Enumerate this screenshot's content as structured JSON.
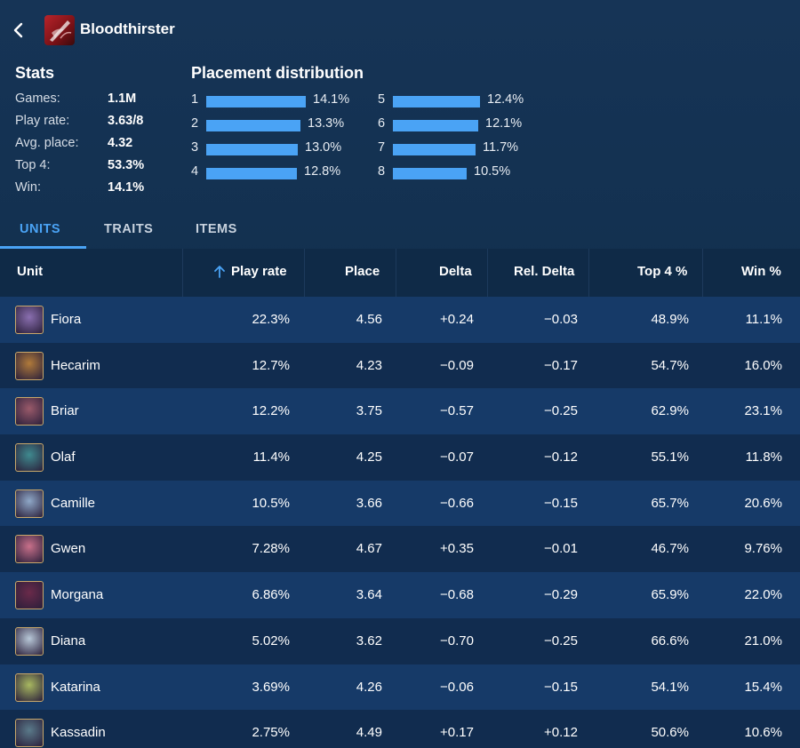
{
  "header": {
    "title": "Bloodthirster",
    "back_icon": "chevron-left-icon",
    "item_icon": "bloodthirster-item-icon"
  },
  "stats": {
    "title": "Stats",
    "rows": [
      {
        "label": "Games:",
        "value": "1.1M"
      },
      {
        "label": "Play rate:",
        "value": "3.63/8"
      },
      {
        "label": "Avg. place:",
        "value": "4.32"
      },
      {
        "label": "Top 4:",
        "value": "53.3%"
      },
      {
        "label": "Win:",
        "value": "14.1%"
      }
    ]
  },
  "distribution": {
    "title": "Placement distribution",
    "bar_color": "#4aa3f5",
    "rows": [
      {
        "place": "1",
        "pct": "14.1%",
        "value": 14.1
      },
      {
        "place": "2",
        "pct": "13.3%",
        "value": 13.3
      },
      {
        "place": "3",
        "pct": "13.0%",
        "value": 13.0
      },
      {
        "place": "4",
        "pct": "12.8%",
        "value": 12.8
      },
      {
        "place": "5",
        "pct": "12.4%",
        "value": 12.4
      },
      {
        "place": "6",
        "pct": "12.1%",
        "value": 12.1
      },
      {
        "place": "7",
        "pct": "11.7%",
        "value": 11.7
      },
      {
        "place": "8",
        "pct": "10.5%",
        "value": 10.5
      }
    ]
  },
  "tabs": [
    {
      "label": "UNITS",
      "active": true
    },
    {
      "label": "TRAITS",
      "active": false
    },
    {
      "label": "ITEMS",
      "active": false
    }
  ],
  "table": {
    "headers": {
      "unit": "Unit",
      "play_rate": "Play rate",
      "place": "Place",
      "delta": "Delta",
      "rel_delta": "Rel. Delta",
      "top4": "Top 4 %",
      "win": "Win %"
    },
    "sort_icon": "arrow-up-icon",
    "rows": [
      {
        "unit": "Fiora",
        "play_rate": "22.3%",
        "place": "4.56",
        "delta": "+0.24",
        "rel_delta": "−0.03",
        "top4": "48.9%",
        "win": "11.1%"
      },
      {
        "unit": "Hecarim",
        "play_rate": "12.7%",
        "place": "4.23",
        "delta": "−0.09",
        "rel_delta": "−0.17",
        "top4": "54.7%",
        "win": "16.0%"
      },
      {
        "unit": "Briar",
        "play_rate": "12.2%",
        "place": "3.75",
        "delta": "−0.57",
        "rel_delta": "−0.25",
        "top4": "62.9%",
        "win": "23.1%"
      },
      {
        "unit": "Olaf",
        "play_rate": "11.4%",
        "place": "4.25",
        "delta": "−0.07",
        "rel_delta": "−0.12",
        "top4": "55.1%",
        "win": "11.8%"
      },
      {
        "unit": "Camille",
        "play_rate": "10.5%",
        "place": "3.66",
        "delta": "−0.66",
        "rel_delta": "−0.15",
        "top4": "65.7%",
        "win": "20.6%"
      },
      {
        "unit": "Gwen",
        "play_rate": "7.28%",
        "place": "4.67",
        "delta": "+0.35",
        "rel_delta": "−0.01",
        "top4": "46.7%",
        "win": "9.76%"
      },
      {
        "unit": "Morgana",
        "play_rate": "6.86%",
        "place": "3.64",
        "delta": "−0.68",
        "rel_delta": "−0.29",
        "top4": "65.9%",
        "win": "22.0%"
      },
      {
        "unit": "Diana",
        "play_rate": "5.02%",
        "place": "3.62",
        "delta": "−0.70",
        "rel_delta": "−0.25",
        "top4": "66.6%",
        "win": "21.0%"
      },
      {
        "unit": "Katarina",
        "play_rate": "3.69%",
        "place": "4.26",
        "delta": "−0.06",
        "rel_delta": "−0.15",
        "top4": "54.1%",
        "win": "15.4%"
      },
      {
        "unit": "Kassadin",
        "play_rate": "2.75%",
        "place": "4.49",
        "delta": "+0.17",
        "rel_delta": "+0.12",
        "top4": "50.6%",
        "win": "10.6%"
      }
    ]
  },
  "avatar_colors": [
    "#8a6fb0",
    "#b07a3a",
    "#9a5a6a",
    "#3f8a8f",
    "#8fa8c8",
    "#c8708a",
    "#6a2a4a",
    "#b8c8d8",
    "#a8b860",
    "#5a7a8a"
  ]
}
